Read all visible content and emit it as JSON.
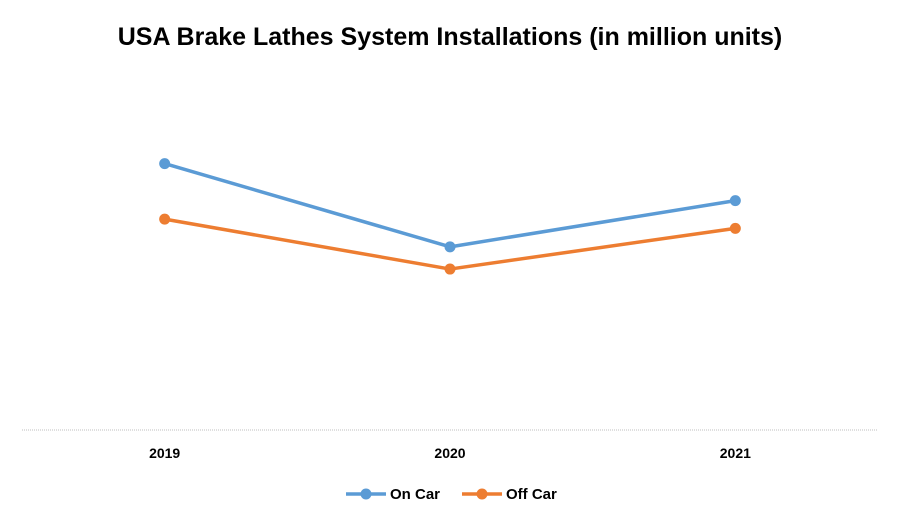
{
  "chart_data": {
    "type": "line",
    "title": "USA Brake Lathes System Installations (in million units)",
    "xlabel": "",
    "ylabel": "",
    "categories": [
      "2019",
      "2020",
      "2021"
    ],
    "ylim": [
      0,
      10
    ],
    "grid": false,
    "legend_position": "bottom",
    "series": [
      {
        "name": "On Car",
        "color": "#5B9BD5",
        "values": [
          7.2,
          4.95,
          6.2
        ]
      },
      {
        "name": "Off Car",
        "color": "#ED7D31",
        "values": [
          5.7,
          4.35,
          5.45
        ]
      }
    ]
  }
}
